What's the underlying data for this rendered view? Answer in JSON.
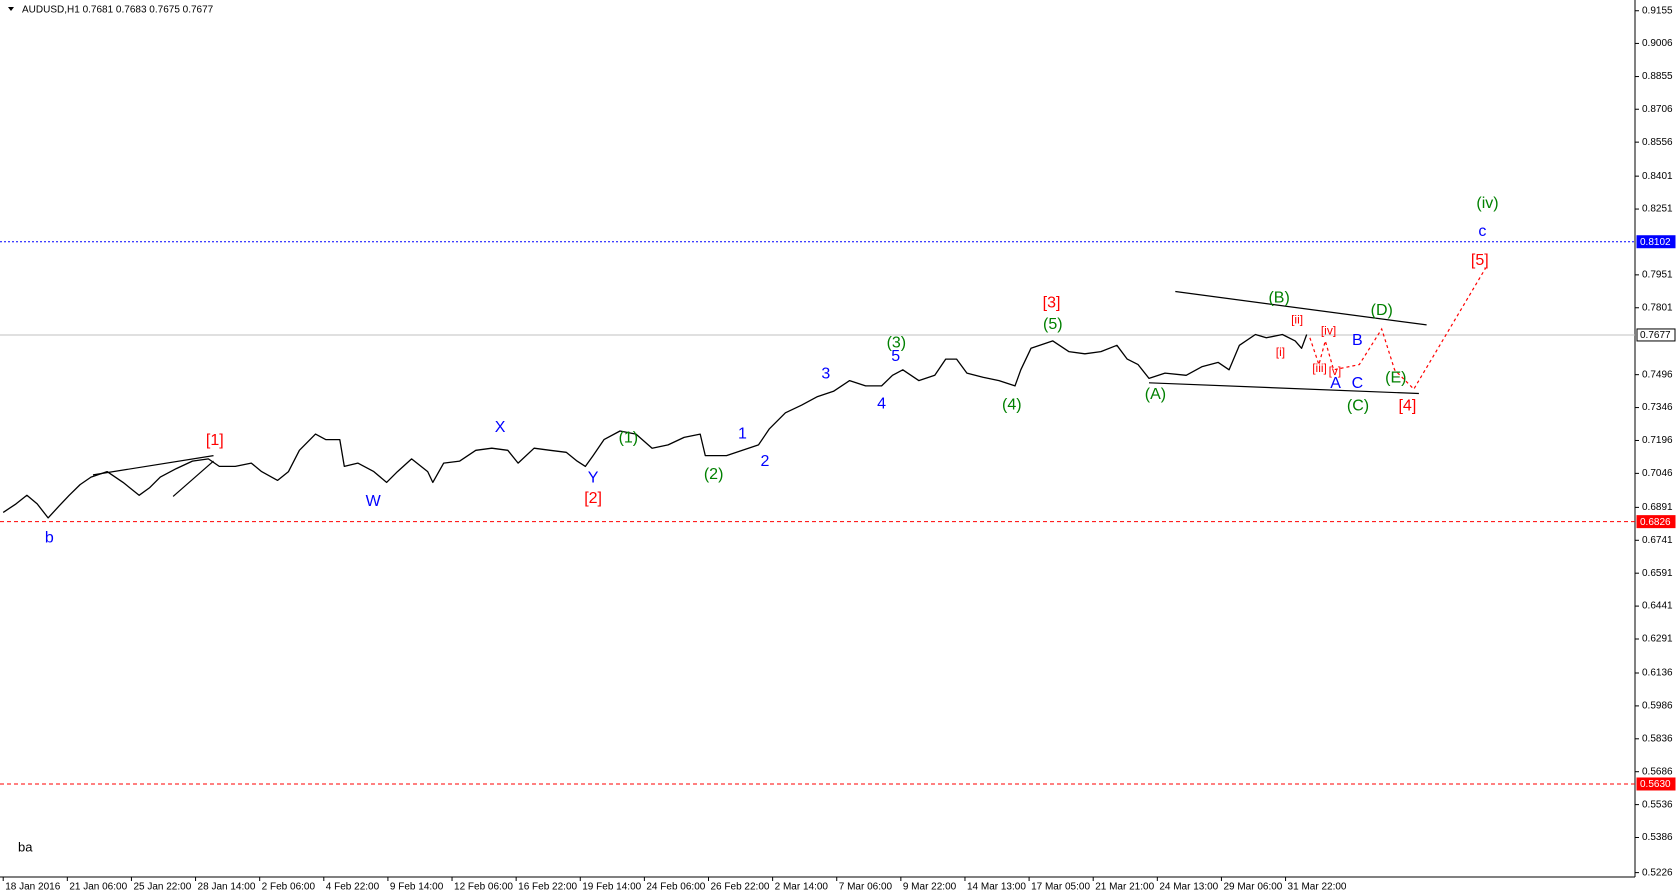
{
  "chart_data": {
    "type": "line",
    "title": "AUDUSD,H1  0.7681 0.7683 0.7675 0.7677",
    "footer": "ba",
    "color": "#000000",
    "xlim": [
      -0.05,
      25.45
    ],
    "ylim": [
      0.5206,
      0.9204
    ],
    "xticks": [
      {
        "value": 0,
        "label": "18 Jan 2016"
      },
      {
        "value": 1,
        "label": "21 Jan 06:00"
      },
      {
        "value": 2,
        "label": "25 Jan 22:00"
      },
      {
        "value": 3,
        "label": "28 Jan 14:00"
      },
      {
        "value": 4,
        "label": "2 Feb 06:00"
      },
      {
        "value": 5,
        "label": "4 Feb 22:00"
      },
      {
        "value": 6,
        "label": "9 Feb 14:00"
      },
      {
        "value": 7,
        "label": "12 Feb 06:00"
      },
      {
        "value": 8,
        "label": "16 Feb 22:00"
      },
      {
        "value": 9,
        "label": "19 Feb 14:00"
      },
      {
        "value": 10,
        "label": "24 Feb 06:00"
      },
      {
        "value": 11,
        "label": "26 Feb 22:00"
      },
      {
        "value": 12,
        "label": "2 Mar 14:00"
      },
      {
        "value": 13,
        "label": "7 Mar 06:00"
      },
      {
        "value": 14,
        "label": "9 Mar 22:00"
      },
      {
        "value": 15,
        "label": "14 Mar 13:00"
      },
      {
        "value": 16,
        "label": "17 Mar 05:00"
      },
      {
        "value": 17,
        "label": "21 Mar 21:00"
      },
      {
        "value": 18,
        "label": "24 Mar 13:00"
      },
      {
        "value": 19,
        "label": "29 Mar 06:00"
      },
      {
        "value": 20,
        "label": "31 Mar 22:00"
      }
    ],
    "yticks": [
      0.9155,
      0.9006,
      0.8855,
      0.8706,
      0.8556,
      0.8401,
      0.8251,
      0.7951,
      0.7801,
      0.7496,
      0.7346,
      0.7196,
      0.7046,
      0.6891,
      0.6741,
      0.6591,
      0.6441,
      0.6291,
      0.6136,
      0.5986,
      0.5836,
      0.5686,
      0.5536,
      0.5386,
      0.5226
    ],
    "x": [
      0,
      0.2,
      0.37,
      0.53,
      0.7,
      0.87,
      1.03,
      1.2,
      1.37,
      1.62,
      1.87,
      2.12,
      2.28,
      2.45,
      2.7,
      2.95,
      3.2,
      3.37,
      3.62,
      3.87,
      4.03,
      4.28,
      4.45,
      4.62,
      4.87,
      5.03,
      5.25,
      5.32,
      5.53,
      5.78,
      5.98,
      6.15,
      6.37,
      6.62,
      6.7,
      6.87,
      7.12,
      7.37,
      7.62,
      7.87,
      8.03,
      8.28,
      8.53,
      8.78,
      8.95,
      9.08,
      9.2,
      9.37,
      9.62,
      9.87,
      10.12,
      10.37,
      10.62,
      10.87,
      10.95,
      11.28,
      11.53,
      11.78,
      11.95,
      12.2,
      12.45,
      12.7,
      12.95,
      13.2,
      13.45,
      13.7,
      13.87,
      14.03,
      14.28,
      14.53,
      14.7,
      14.87,
      15.03,
      15.28,
      15.53,
      15.78,
      15.87,
      16.03,
      16.37,
      16.62,
      16.87,
      17.12,
      17.37,
      17.53,
      17.7,
      17.87,
      18.12,
      18.45,
      18.7,
      18.95,
      19.12,
      19.28,
      19.53,
      19.7,
      19.95,
      20.15,
      20.25,
      20.33
    ],
    "values": [
      0.6868,
      0.6907,
      0.6946,
      0.6907,
      0.6843,
      0.6897,
      0.6946,
      0.6995,
      0.7029,
      0.7054,
      0.7005,
      0.6946,
      0.698,
      0.7029,
      0.7068,
      0.7102,
      0.7112,
      0.7078,
      0.7078,
      0.7093,
      0.7054,
      0.7014,
      0.7054,
      0.7151,
      0.7225,
      0.72,
      0.72,
      0.7078,
      0.7093,
      0.7054,
      0.7005,
      0.7054,
      0.7112,
      0.7054,
      0.7005,
      0.7093,
      0.7102,
      0.7151,
      0.7161,
      0.7151,
      0.7093,
      0.7161,
      0.7151,
      0.7142,
      0.7102,
      0.7078,
      0.7127,
      0.72,
      0.7239,
      0.7225,
      0.7161,
      0.7176,
      0.721,
      0.7225,
      0.7127,
      0.7127,
      0.7151,
      0.7176,
      0.7249,
      0.7322,
      0.7357,
      0.7396,
      0.742,
      0.7469,
      0.7445,
      0.7445,
      0.7493,
      0.7518,
      0.7469,
      0.7493,
      0.7567,
      0.7567,
      0.7503,
      0.7484,
      0.7469,
      0.7445,
      0.7518,
      0.7616,
      0.765,
      0.7601,
      0.7591,
      0.7601,
      0.763,
      0.7567,
      0.7542,
      0.7479,
      0.7503,
      0.7493,
      0.7533,
      0.7552,
      0.7518,
      0.763,
      0.7679,
      0.7664,
      0.7679,
      0.765,
      0.7616,
      0.7679
    ],
    "levels": [
      {
        "value": 0.8102,
        "color": "#0000ff",
        "style": "dotted"
      },
      {
        "value": 0.7677,
        "color": "#c0c0c0",
        "style": "solid"
      },
      {
        "value": 0.6826,
        "color": "#ff0000",
        "style": "dashed"
      },
      {
        "value": 0.563,
        "label": "0.5630",
        "color": "#ff0000",
        "style": "dashed"
      }
    ],
    "lines": [
      {
        "color": "#000000",
        "x": [
          18.28,
          22.2
        ],
        "y": [
          0.7875,
          0.7723
        ]
      },
      {
        "color": "#000000",
        "x": [
          17.87,
          22.08
        ],
        "y": [
          0.7459,
          0.741
        ]
      },
      {
        "color": "#000000",
        "x": [
          1.4,
          3.28
        ],
        "y": [
          0.7039,
          0.7127
        ]
      },
      {
        "color": "#000000",
        "x": [
          2.65,
          3.28
        ],
        "y": [
          0.6941,
          0.7102
        ]
      },
      {
        "color": "#ff0000",
        "dash": true,
        "x": [
          20.38,
          20.52,
          20.62,
          20.75,
          21.15,
          21.5,
          21.7,
          22.0,
          23.12
        ],
        "y": [
          0.7664,
          0.7542,
          0.765,
          0.7518,
          0.7542,
          0.7704,
          0.7518,
          0.743,
          0.7982
        ]
      }
    ],
    "annotations": [
      {
        "text": "b",
        "color": "#0000ff",
        "x": 0.72,
        "y": 0.6751
      },
      {
        "text": "[1]",
        "color": "#ff0000",
        "x": 3.3,
        "y": 0.7195
      },
      {
        "text": "W",
        "color": "#0000ff",
        "x": 5.77,
        "y": 0.6917
      },
      {
        "text": "X",
        "color": "#0000ff",
        "x": 7.75,
        "y": 0.7254
      },
      {
        "text": "Y",
        "color": "#0000ff",
        "x": 9.2,
        "y": 0.7024
      },
      {
        "text": "[2]",
        "color": "#ff0000",
        "x": 9.2,
        "y": 0.6931
      },
      {
        "text": "(1)",
        "color": "#008000",
        "x": 9.75,
        "y": 0.7205
      },
      {
        "text": "(2)",
        "color": "#008000",
        "x": 11.08,
        "y": 0.7039
      },
      {
        "text": "1",
        "color": "#0000ff",
        "x": 11.53,
        "y": 0.7225
      },
      {
        "text": "2",
        "color": "#0000ff",
        "x": 11.88,
        "y": 0.7098
      },
      {
        "text": "3",
        "color": "#0000ff",
        "x": 12.83,
        "y": 0.7498
      },
      {
        "text": "4",
        "color": "#0000ff",
        "x": 13.7,
        "y": 0.7361
      },
      {
        "text": "5",
        "color": "#0000ff",
        "x": 13.92,
        "y": 0.7577
      },
      {
        "text": "(3)",
        "color": "#008000",
        "x": 13.93,
        "y": 0.764
      },
      {
        "text": "(4)",
        "color": "#008000",
        "x": 15.73,
        "y": 0.7357
      },
      {
        "text": "[3]",
        "color": "#ff0000",
        "x": 16.35,
        "y": 0.7821
      },
      {
        "text": "(5)",
        "color": "#008000",
        "x": 16.37,
        "y": 0.7723
      },
      {
        "text": "(A)",
        "color": "#008000",
        "x": 17.97,
        "y": 0.7405
      },
      {
        "text": "(B)",
        "color": "#008000",
        "x": 19.9,
        "y": 0.7845
      },
      {
        "text": "[ii]",
        "color": "#ff0000",
        "x": 20.18,
        "y": 0.7743,
        "small": true
      },
      {
        "text": "[i]",
        "color": "#ff0000",
        "x": 19.92,
        "y": 0.7596,
        "small": true
      },
      {
        "text": "[iv]",
        "color": "#ff0000",
        "x": 20.67,
        "y": 0.7694,
        "small": true
      },
      {
        "text": "[iii]",
        "color": "#ff0000",
        "x": 20.53,
        "y": 0.7523,
        "small": true
      },
      {
        "text": "[v]",
        "color": "#ff0000",
        "x": 20.77,
        "y": 0.7508,
        "small": true
      },
      {
        "text": "A",
        "color": "#0000ff",
        "x": 20.78,
        "y": 0.7454
      },
      {
        "text": "B",
        "color": "#0000ff",
        "x": 21.12,
        "y": 0.765
      },
      {
        "text": "C",
        "color": "#0000ff",
        "x": 21.12,
        "y": 0.7454
      },
      {
        "text": "(C)",
        "color": "#008000",
        "x": 21.13,
        "y": 0.7352
      },
      {
        "text": "(D)",
        "color": "#008000",
        "x": 21.5,
        "y": 0.7787
      },
      {
        "text": "(E)",
        "color": "#008000",
        "x": 21.72,
        "y": 0.7479
      },
      {
        "text": "[4]",
        "color": "#ff0000",
        "x": 21.9,
        "y": 0.7352
      },
      {
        "text": "[5]",
        "color": "#ff0000",
        "x": 23.03,
        "y": 0.8016
      },
      {
        "text": "c",
        "color": "#0000ff",
        "x": 23.07,
        "y": 0.8148
      },
      {
        "text": "(iv)",
        "color": "#008000",
        "x": 23.15,
        "y": 0.8275
      }
    ]
  }
}
